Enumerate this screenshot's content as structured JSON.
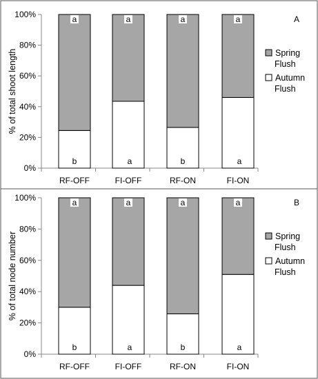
{
  "chart_data": [
    {
      "type": "bar",
      "stacked": true,
      "panel_label": "A",
      "ylabel": "% of total shoot length",
      "ylim": [
        0,
        100
      ],
      "yticks": [
        "0%",
        "20%",
        "40%",
        "60%",
        "80%",
        "100%"
      ],
      "categories": [
        "RF-OFF",
        "FI-OFF",
        "RF-ON",
        "FI-ON"
      ],
      "series": [
        {
          "name": "Autumn Flush",
          "color": "#ffffff",
          "values": [
            24.5,
            43.5,
            26.5,
            46
          ]
        },
        {
          "name": "Spring Flush",
          "color": "#a6a6a6",
          "values": [
            75.5,
            56.5,
            73.5,
            54
          ]
        }
      ],
      "top_letters": [
        "a",
        "a",
        "a",
        "a"
      ],
      "bottom_letters": [
        "b",
        "a",
        "b",
        "a"
      ],
      "legend": [
        "Spring\nFlush",
        "Autumn\nFlush"
      ],
      "legend_position": "right"
    },
    {
      "type": "bar",
      "stacked": true,
      "panel_label": "B",
      "ylabel": "% of total node number",
      "ylim": [
        0,
        100
      ],
      "yticks": [
        "0%",
        "20%",
        "40%",
        "60%",
        "80%",
        "100%"
      ],
      "categories": [
        "RF-OFF",
        "FI-OFF",
        "RF-ON",
        "FI-ON"
      ],
      "series": [
        {
          "name": "Autumn Flush",
          "color": "#ffffff",
          "values": [
            30,
            44,
            25.8,
            51
          ]
        },
        {
          "name": "Spring Flush",
          "color": "#a6a6a6",
          "values": [
            70,
            56,
            74.2,
            49
          ]
        }
      ],
      "top_letters": [
        "a",
        "a",
        "a",
        "a"
      ],
      "bottom_letters": [
        "b",
        "a",
        "b",
        "a"
      ],
      "legend": [
        "Spring\nFlush",
        "Autumn\nFlush"
      ],
      "legend_position": "right"
    }
  ]
}
